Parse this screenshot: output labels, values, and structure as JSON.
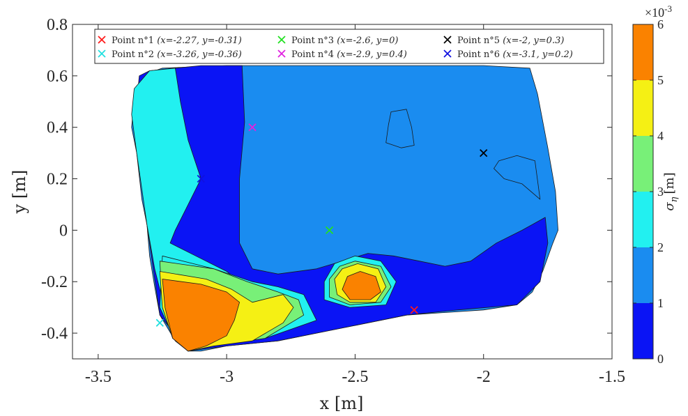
{
  "chart_data": {
    "type": "heatmap",
    "title": "",
    "xlabel": "x [m]",
    "ylabel": "y [m]",
    "xlim": [
      -3.6,
      -1.5
    ],
    "ylim": [
      -0.5,
      0.8
    ],
    "xticks": [
      -3.5,
      -3,
      -2.5,
      -2,
      -1.5
    ],
    "yticks": [
      -0.4,
      -0.2,
      0,
      0.2,
      0.4,
      0.6,
      0.8
    ],
    "xtick_labels": [
      "-3.5",
      "-3",
      "-2.5",
      "-2",
      "-1.5"
    ],
    "ytick_labels": [
      "-0.4",
      "-0.2",
      "0",
      "0.2",
      "0.4",
      "0.6",
      "0.8"
    ],
    "grid": false,
    "legend_position": "top",
    "colorbar": {
      "label": "σ_η [m]",
      "label_main": "σ",
      "label_sub": "η",
      "label_unit": "[m]",
      "exponent_label": "×10",
      "exponent_power": "-3",
      "range": [
        0,
        6
      ],
      "tick_labels": [
        "0",
        "1",
        "2",
        "3",
        "4",
        "5",
        "6"
      ],
      "levels": [
        {
          "from": 0,
          "to": 1,
          "color": "#0a14f5"
        },
        {
          "from": 1,
          "to": 2,
          "color": "#1a8cf0"
        },
        {
          "from": 2,
          "to": 3,
          "color": "#22f0f0"
        },
        {
          "from": 3,
          "to": 4,
          "color": "#78f078"
        },
        {
          "from": 4,
          "to": 5,
          "color": "#f5f014"
        },
        {
          "from": 5,
          "to": 6,
          "color": "#fa8200"
        }
      ]
    },
    "series": [
      {
        "name": "Point n°1",
        "label_rest": "(x=-2.27, y=-0.31)",
        "x": -2.27,
        "y": -0.31,
        "color": "#ff1a1a"
      },
      {
        "name": "Point n°2",
        "label_rest": "(x=-3.26, y=-0.36)",
        "x": -3.26,
        "y": -0.36,
        "color": "#22e0e0"
      },
      {
        "name": "Point n°3",
        "label_rest": "(x=-2.6, y=0)",
        "x": -2.6,
        "y": 0,
        "color": "#22e022"
      },
      {
        "name": "Point n°4",
        "label_rest": "(x=-2.9, y=0.4)",
        "x": -2.9,
        "y": 0.4,
        "color": "#e022e0"
      },
      {
        "name": "Point n°5",
        "label_rest": "(x=-2, y=0.3)",
        "x": -2,
        "y": 0.3,
        "color": "#000000"
      },
      {
        "name": "Point n°6",
        "label_rest": "(x=-3.1, y=0.2)",
        "x": -3.1,
        "y": 0.2,
        "color": "#1010e0"
      }
    ],
    "field_shapes": {
      "domain": [
        [
          -3.33,
          0.58
        ],
        [
          -3.31,
          0.61
        ],
        [
          -3.25,
          0.63
        ],
        [
          -3.0,
          0.64
        ],
        [
          -2.5,
          0.64
        ],
        [
          -2.0,
          0.64
        ],
        [
          -1.82,
          0.63
        ],
        [
          -1.79,
          0.53
        ],
        [
          -1.75,
          0.32
        ],
        [
          -1.72,
          0.15
        ],
        [
          -1.71,
          0.0
        ],
        [
          -1.73,
          -0.05
        ],
        [
          -1.77,
          -0.16
        ],
        [
          -1.81,
          -0.24
        ],
        [
          -1.87,
          -0.29
        ],
        [
          -2.0,
          -0.31
        ],
        [
          -2.3,
          -0.33
        ],
        [
          -2.6,
          -0.39
        ],
        [
          -2.8,
          -0.43
        ],
        [
          -3.0,
          -0.45
        ],
        [
          -3.1,
          -0.47
        ],
        [
          -3.15,
          -0.47
        ],
        [
          -3.2,
          -0.43
        ],
        [
          -3.26,
          -0.33
        ],
        [
          -3.28,
          -0.22
        ],
        [
          -3.3,
          -0.1
        ],
        [
          -3.31,
          0.02
        ],
        [
          -3.33,
          0.12
        ],
        [
          -3.35,
          0.3
        ],
        [
          -3.37,
          0.4
        ],
        [
          -3.36,
          0.52
        ]
      ],
      "l1_left": [
        [
          -3.34,
          0.6
        ],
        [
          -3.3,
          0.62
        ],
        [
          -3.1,
          0.64
        ],
        [
          -2.94,
          0.64
        ],
        [
          -2.93,
          0.42
        ],
        [
          -2.95,
          0.2
        ],
        [
          -2.95,
          -0.05
        ],
        [
          -2.9,
          -0.15
        ],
        [
          -2.8,
          -0.17
        ],
        [
          -2.65,
          -0.15
        ],
        [
          -2.55,
          -0.12
        ],
        [
          -2.45,
          -0.09
        ],
        [
          -2.35,
          -0.1
        ],
        [
          -2.25,
          -0.12
        ],
        [
          -2.15,
          -0.14
        ],
        [
          -2.05,
          -0.12
        ],
        [
          -1.95,
          -0.05
        ],
        [
          -1.85,
          0.0
        ],
        [
          -1.76,
          0.05
        ],
        [
          -1.75,
          -0.05
        ],
        [
          -1.78,
          -0.2
        ],
        [
          -1.87,
          -0.29
        ],
        [
          -2.1,
          -0.31
        ],
        [
          -2.3,
          -0.33
        ],
        [
          -2.6,
          -0.39
        ],
        [
          -2.8,
          -0.43
        ],
        [
          -3.0,
          -0.45
        ],
        [
          -3.15,
          -0.47
        ],
        [
          -3.26,
          -0.33
        ],
        [
          -3.31,
          0.02
        ],
        [
          -3.36,
          0.4
        ]
      ],
      "l1_blob1": [
        [
          -2.36,
          0.46
        ],
        [
          -2.3,
          0.47
        ],
        [
          -2.28,
          0.4
        ],
        [
          -2.27,
          0.33
        ],
        [
          -2.32,
          0.32
        ],
        [
          -2.38,
          0.34
        ],
        [
          -2.37,
          0.41
        ]
      ],
      "l1_blob2": [
        [
          -1.94,
          0.27
        ],
        [
          -1.87,
          0.29
        ],
        [
          -1.8,
          0.27
        ],
        [
          -1.78,
          0.12
        ],
        [
          -1.85,
          0.18
        ],
        [
          -1.92,
          0.2
        ],
        [
          -1.96,
          0.24
        ]
      ],
      "l2": [
        [
          -3.36,
          0.55
        ],
        [
          -3.3,
          0.62
        ],
        [
          -3.2,
          0.63
        ],
        [
          -3.18,
          0.5
        ],
        [
          -3.15,
          0.35
        ],
        [
          -3.1,
          0.2
        ],
        [
          -3.15,
          0.1
        ],
        [
          -3.2,
          0.0
        ],
        [
          -3.22,
          -0.05
        ],
        [
          -3.12,
          -0.1
        ],
        [
          -3.0,
          -0.16
        ],
        [
          -2.95,
          -0.2
        ],
        [
          -3.1,
          -0.24
        ],
        [
          -3.25,
          -0.27
        ],
        [
          -3.28,
          -0.15
        ],
        [
          -3.31,
          0.02
        ],
        [
          -3.35,
          0.3
        ],
        [
          -3.37,
          0.45
        ]
      ],
      "l2_blob": [
        [
          -2.5,
          -0.1
        ],
        [
          -2.4,
          -0.12
        ],
        [
          -2.34,
          -0.2
        ],
        [
          -2.38,
          -0.29
        ],
        [
          -2.52,
          -0.3
        ],
        [
          -2.62,
          -0.27
        ],
        [
          -2.62,
          -0.2
        ],
        [
          -2.58,
          -0.13
        ]
      ],
      "l2_low": [
        [
          -3.25,
          -0.1
        ],
        [
          -3.05,
          -0.15
        ],
        [
          -2.9,
          -0.2
        ],
        [
          -2.8,
          -0.22
        ],
        [
          -2.7,
          -0.25
        ],
        [
          -2.65,
          -0.35
        ],
        [
          -2.85,
          -0.42
        ],
        [
          -3.05,
          -0.45
        ],
        [
          -3.15,
          -0.47
        ],
        [
          -3.2,
          -0.43
        ],
        [
          -3.26,
          -0.3
        ]
      ],
      "l3": [
        [
          -3.26,
          -0.12
        ],
        [
          -3.05,
          -0.15
        ],
        [
          -2.92,
          -0.2
        ],
        [
          -2.8,
          -0.24
        ],
        [
          -2.72,
          -0.27
        ],
        [
          -2.7,
          -0.33
        ],
        [
          -2.85,
          -0.42
        ],
        [
          -3.05,
          -0.45
        ],
        [
          -3.15,
          -0.47
        ],
        [
          -3.21,
          -0.42
        ],
        [
          -3.25,
          -0.3
        ]
      ],
      "l3_blob": [
        [
          -2.5,
          -0.12
        ],
        [
          -2.4,
          -0.14
        ],
        [
          -2.36,
          -0.22
        ],
        [
          -2.4,
          -0.28
        ],
        [
          -2.52,
          -0.29
        ],
        [
          -2.6,
          -0.26
        ],
        [
          -2.6,
          -0.19
        ],
        [
          -2.56,
          -0.14
        ]
      ],
      "l4": [
        [
          -3.26,
          -0.16
        ],
        [
          -3.08,
          -0.19
        ],
        [
          -2.98,
          -0.23
        ],
        [
          -2.9,
          -0.28
        ],
        [
          -2.78,
          -0.25
        ],
        [
          -2.74,
          -0.3
        ],
        [
          -2.78,
          -0.36
        ],
        [
          -2.9,
          -0.43
        ],
        [
          -3.05,
          -0.45
        ],
        [
          -3.15,
          -0.47
        ],
        [
          -3.21,
          -0.42
        ],
        [
          -3.25,
          -0.3
        ]
      ],
      "l4_blob": [
        [
          -2.49,
          -0.13
        ],
        [
          -2.41,
          -0.15
        ],
        [
          -2.38,
          -0.22
        ],
        [
          -2.42,
          -0.28
        ],
        [
          -2.52,
          -0.28
        ],
        [
          -2.57,
          -0.25
        ],
        [
          -2.58,
          -0.19
        ],
        [
          -2.55,
          -0.15
        ]
      ],
      "l5": [
        [
          -3.25,
          -0.19
        ],
        [
          -3.1,
          -0.21
        ],
        [
          -3.0,
          -0.24
        ],
        [
          -2.95,
          -0.28
        ],
        [
          -2.97,
          -0.35
        ],
        [
          -3.0,
          -0.41
        ],
        [
          -3.08,
          -0.45
        ],
        [
          -3.15,
          -0.47
        ],
        [
          -3.21,
          -0.42
        ],
        [
          -3.24,
          -0.3
        ]
      ],
      "l5_blob": [
        [
          -2.48,
          -0.16
        ],
        [
          -2.42,
          -0.18
        ],
        [
          -2.4,
          -0.24
        ],
        [
          -2.44,
          -0.27
        ],
        [
          -2.52,
          -0.27
        ],
        [
          -2.55,
          -0.23
        ],
        [
          -2.53,
          -0.18
        ]
      ]
    }
  }
}
